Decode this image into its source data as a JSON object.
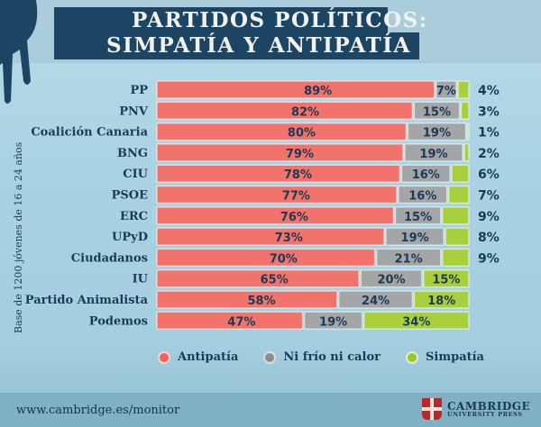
{
  "title": {
    "line1": "PARTIDOS POLÍTICOS:",
    "line2": "SIMPATÍA Y ANTIPATÍA"
  },
  "side_note": "Base de 1200 jóvenes de 16 a 24 años",
  "legend": [
    {
      "label": "Antipatía",
      "color": "#f0625c"
    },
    {
      "label": "Ni frío ni calor",
      "color": "#8c8c8c"
    },
    {
      "label": "Simpatía",
      "color": "#9bc633"
    }
  ],
  "footer": {
    "url": "www.cambridge.es/monitor",
    "logo_line1": "CAMBRIDGE",
    "logo_line2": "UNIVERSITY PRESS"
  },
  "chart_data": {
    "type": "bar",
    "orientation": "horizontal",
    "stacked": true,
    "title": "PARTIDOS POLÍTICOS: SIMPATÍA Y ANTIPATÍA",
    "ylabel": "Base de 1200 jóvenes de 16 a 24 años",
    "xlabel": "",
    "unit": "%",
    "categories": [
      "PP",
      "PNV",
      "Coalición Canaria",
      "BNG",
      "CIU",
      "PSOE",
      "ERC",
      "UPyD",
      "Ciudadanos",
      "IU",
      "Partido Animalista",
      "Podemos"
    ],
    "series": [
      {
        "name": "Antipatía",
        "color": "#f2736b",
        "values": [
          89,
          82,
          80,
          79,
          78,
          77,
          76,
          73,
          70,
          65,
          58,
          47
        ]
      },
      {
        "name": "Ni frío ni calor",
        "color": "#a3a5a6",
        "values": [
          7,
          15,
          19,
          19,
          16,
          16,
          15,
          19,
          21,
          20,
          24,
          19
        ]
      },
      {
        "name": "Simpatía",
        "color": "#a8cf3c",
        "values": [
          4,
          3,
          1,
          2,
          6,
          7,
          9,
          8,
          9,
          15,
          18,
          34
        ]
      }
    ],
    "legend_position": "bottom",
    "grid": false
  }
}
